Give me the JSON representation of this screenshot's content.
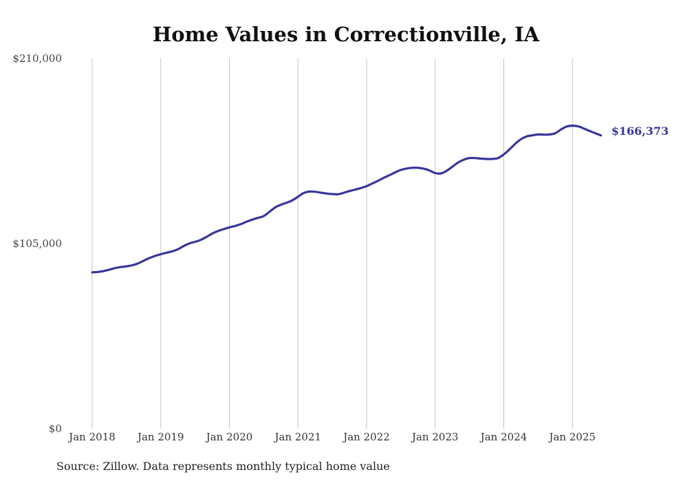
{
  "source_note": "Source: Zillow. Data represents monthly typical home value",
  "chart_data": {
    "type": "line",
    "title": "Home Values in Correctionville, IA",
    "xlabel": "",
    "ylabel": "",
    "ylim": [
      0,
      210000
    ],
    "y_ticks": [
      "$0",
      "$105,000",
      "$210,000"
    ],
    "y_tick_values": [
      0,
      105000,
      210000
    ],
    "x_ticks": [
      "Jan 2018",
      "Jan 2019",
      "Jan 2020",
      "Jan 2021",
      "Jan 2022",
      "Jan 2023",
      "Jan 2024",
      "Jan 2025"
    ],
    "x_tick_dates": [
      "2018-01",
      "2019-01",
      "2020-01",
      "2021-01",
      "2022-01",
      "2023-01",
      "2024-01",
      "2025-01"
    ],
    "grid": "vertical",
    "line_color": "#37369a",
    "end_label": "$166,373",
    "series": [
      {
        "name": "",
        "x": [
          "2018-01",
          "2018-02",
          "2018-03",
          "2018-04",
          "2018-05",
          "2018-06",
          "2018-07",
          "2018-08",
          "2018-09",
          "2018-10",
          "2018-11",
          "2018-12",
          "2019-01",
          "2019-02",
          "2019-03",
          "2019-04",
          "2019-05",
          "2019-06",
          "2019-07",
          "2019-08",
          "2019-09",
          "2019-10",
          "2019-11",
          "2019-12",
          "2020-01",
          "2020-02",
          "2020-03",
          "2020-04",
          "2020-05",
          "2020-06",
          "2020-07",
          "2020-08",
          "2020-09",
          "2020-10",
          "2020-11",
          "2020-12",
          "2021-01",
          "2021-02",
          "2021-03",
          "2021-04",
          "2021-05",
          "2021-06",
          "2021-07",
          "2021-08",
          "2021-09",
          "2021-10",
          "2021-11",
          "2021-12",
          "2022-01",
          "2022-02",
          "2022-03",
          "2022-04",
          "2022-05",
          "2022-06",
          "2022-07",
          "2022-08",
          "2022-09",
          "2022-10",
          "2022-11",
          "2022-12",
          "2023-01",
          "2023-02",
          "2023-03",
          "2023-04",
          "2023-05",
          "2023-06",
          "2023-07",
          "2023-08",
          "2023-09",
          "2023-10",
          "2023-11",
          "2023-12",
          "2024-01",
          "2024-02",
          "2024-03",
          "2024-04",
          "2024-05",
          "2024-06",
          "2024-07",
          "2024-08",
          "2024-09",
          "2024-10",
          "2024-11",
          "2024-12",
          "2025-01",
          "2025-02",
          "2025-03",
          "2025-04",
          "2025-05",
          "2025-06"
        ],
        "values": [
          88700,
          88900,
          89400,
          90200,
          91100,
          91700,
          92100,
          92700,
          93700,
          95300,
          96800,
          98000,
          99000,
          99800,
          100600,
          101800,
          103600,
          105100,
          106000,
          107100,
          108800,
          110700,
          112100,
          113200,
          114200,
          115000,
          116000,
          117400,
          118600,
          119600,
          120600,
          123000,
          125500,
          127000,
          128200,
          129500,
          131600,
          133700,
          134500,
          134400,
          133900,
          133400,
          133100,
          133000,
          133800,
          134800,
          135600,
          136500,
          137600,
          139100,
          140600,
          142300,
          143800,
          145400,
          146800,
          147600,
          148000,
          148000,
          147500,
          146500,
          145000,
          144800,
          146300,
          148600,
          151000,
          152600,
          153500,
          153500,
          153200,
          153000,
          153000,
          153500,
          155600,
          158400,
          161600,
          164200,
          165800,
          166400,
          166900,
          166800,
          166900,
          167600,
          169700,
          171400,
          171900,
          171500,
          170300,
          168900,
          167600,
          166373
        ]
      }
    ]
  }
}
